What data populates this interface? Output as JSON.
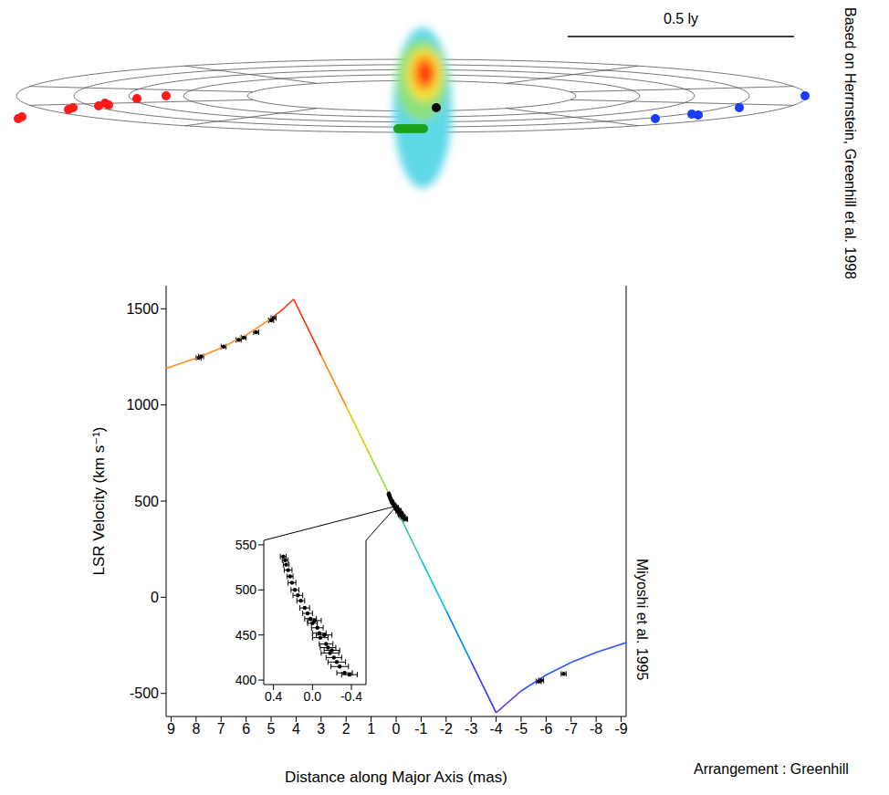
{
  "diagram": {
    "scale_label": "0.5 ly",
    "credit": "Based on Herrnstein, Greenhill et al. 1998"
  },
  "chart_data": [
    {
      "type": "scatter",
      "x_label": "Distance along Major Axis (mas)",
      "y_label": "LSR Velocity (km s⁻¹)",
      "xlim": [
        9.2,
        -9.2
      ],
      "xticks": [
        9,
        8,
        7,
        6,
        5,
        4,
        3,
        2,
        1,
        0,
        -1,
        -2,
        -3,
        -4,
        -5,
        -6,
        -7,
        -8,
        -9
      ],
      "ylim": [
        -620,
        1620
      ],
      "yticks": [
        -500,
        0,
        500,
        1000,
        1500
      ],
      "annotations": [
        "Miyoshi et al. 1995",
        "Arrangement : Greenhill"
      ],
      "series": [
        {
          "type": "line",
          "color": "#ff8c1a",
          "x": [
            9.2,
            9,
            8,
            7,
            6,
            5
          ],
          "values": [
            1191,
            1199,
            1243,
            1296,
            1363,
            1448
          ]
        },
        {
          "type": "line",
          "color": "#ff3a10",
          "x": [
            5,
            4.5,
            4.1
          ],
          "values": [
            1448,
            1501,
            1550
          ]
        },
        {
          "type": "line",
          "color": "#ff2a00",
          "x": [
            4.1,
            3
          ],
          "values": [
            1550,
            1258
          ]
        },
        {
          "type": "line",
          "color": "#ff8800",
          "x": [
            3,
            2
          ],
          "values": [
            1258,
            993
          ]
        },
        {
          "type": "line",
          "color": "#ddcc00",
          "x": [
            2,
            1
          ],
          "values": [
            993,
            727
          ]
        },
        {
          "type": "line",
          "color": "#99dd33",
          "x": [
            1,
            0
          ],
          "values": [
            727,
            462
          ]
        },
        {
          "type": "line",
          "color": "#33cc99",
          "x": [
            0,
            -1
          ],
          "values": [
            462,
            196
          ]
        },
        {
          "type": "line",
          "color": "#00c8d8",
          "x": [
            -1,
            -2
          ],
          "values": [
            196,
            -69
          ]
        },
        {
          "type": "line",
          "color": "#0088ee",
          "x": [
            -2,
            -3
          ],
          "values": [
            -69,
            -335
          ]
        },
        {
          "type": "line",
          "color": "#3333ee",
          "x": [
            -3,
            -4
          ],
          "values": [
            -335,
            -600
          ]
        },
        {
          "type": "line",
          "color": "#6a3df0",
          "x": [
            -4,
            -5
          ],
          "values": [
            -600,
            -487
          ]
        },
        {
          "type": "line",
          "color": "#3355ff",
          "x": [
            -5,
            -6,
            -7,
            -8,
            -9.2
          ],
          "values": [
            -487,
            -404,
            -339,
            -287,
            -236
          ]
        },
        {
          "type": "scatter",
          "color": "#000000",
          "marker": "circle",
          "x": [
            7.9,
            7.8,
            6.9,
            6.3,
            6.1,
            5.6,
            5.0,
            4.9,
            -5.7,
            -5.8,
            -6.7,
            0.3,
            0.28,
            0.27,
            0.25,
            0.23,
            0.21,
            0.18,
            0.15,
            0.12,
            0.08,
            0.05,
            0.02,
            0.0,
            -0.02,
            -0.05,
            -0.07,
            -0.08,
            -0.12,
            -0.14,
            -0.16,
            -0.18,
            -0.2,
            -0.22,
            -0.25,
            -0.28,
            -0.33,
            -0.38
          ],
          "values": [
            1245,
            1252,
            1303,
            1338,
            1350,
            1378,
            1440,
            1452,
            -438,
            -432,
            -398,
            537,
            533,
            528,
            522,
            515,
            508,
            500,
            494,
            488,
            480,
            474,
            468,
            463,
            466,
            458,
            452,
            447,
            450,
            440,
            436,
            430,
            433,
            425,
            420,
            415,
            408,
            406
          ],
          "x_error": [
            0.1,
            0.1,
            0.1,
            0.1,
            0.1,
            0.1,
            0.1,
            0.1,
            0.1,
            0.1,
            0.1,
            0.03,
            0.03,
            0.03,
            0.04,
            0.03,
            0.04,
            0.04,
            0.05,
            0.04,
            0.05,
            0.05,
            0.06,
            0.05,
            0.07,
            0.06,
            0.07,
            0.08,
            0.08,
            0.07,
            0.08,
            0.09,
            0.08,
            0.08,
            0.09,
            0.09,
            0.08,
            0.08
          ]
        }
      ]
    },
    {
      "type": "scatter",
      "xlim": [
        0.5,
        -0.55
      ],
      "xticks": [
        0.4,
        {
          "value": 0,
          "label": "0.0"
        },
        -0.4
      ],
      "ylim": [
        395,
        555
      ],
      "yticks": [
        400,
        450,
        500,
        550
      ],
      "series": [
        {
          "type": "scatter",
          "color": "#000000",
          "marker": "circle",
          "x": [
            0.3,
            0.28,
            0.27,
            0.25,
            0.23,
            0.21,
            0.18,
            0.15,
            0.12,
            0.08,
            0.05,
            0.02,
            0.0,
            -0.02,
            -0.05,
            -0.07,
            -0.08,
            -0.12,
            -0.14,
            -0.16,
            -0.18,
            -0.2,
            -0.22,
            -0.25,
            -0.28,
            -0.33,
            -0.38
          ],
          "values": [
            537,
            533,
            528,
            522,
            515,
            508,
            500,
            494,
            488,
            480,
            474,
            468,
            463,
            466,
            458,
            452,
            447,
            450,
            440,
            436,
            430,
            433,
            425,
            420,
            415,
            408,
            406
          ],
          "x_error": [
            0.03,
            0.03,
            0.03,
            0.04,
            0.03,
            0.04,
            0.04,
            0.05,
            0.04,
            0.05,
            0.05,
            0.06,
            0.05,
            0.07,
            0.06,
            0.07,
            0.08,
            0.08,
            0.07,
            0.08,
            0.09,
            0.08,
            0.08,
            0.09,
            0.09,
            0.08,
            0.08
          ]
        }
      ]
    }
  ]
}
